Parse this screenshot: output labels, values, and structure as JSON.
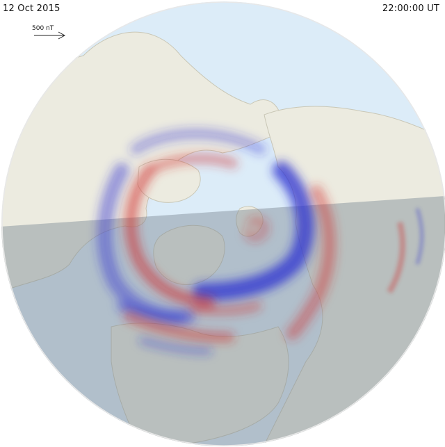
{
  "header": {
    "date": "12 Oct 2015",
    "time": "22:00:00 UT"
  },
  "scale": {
    "label": "500 nT"
  },
  "colors": {
    "ocean": "#dcecf8",
    "land": "#ecebe0",
    "night_shade": "#7d8a95",
    "downward_current": "#2a2fd0",
    "upward_current": "#d02a2a"
  }
}
